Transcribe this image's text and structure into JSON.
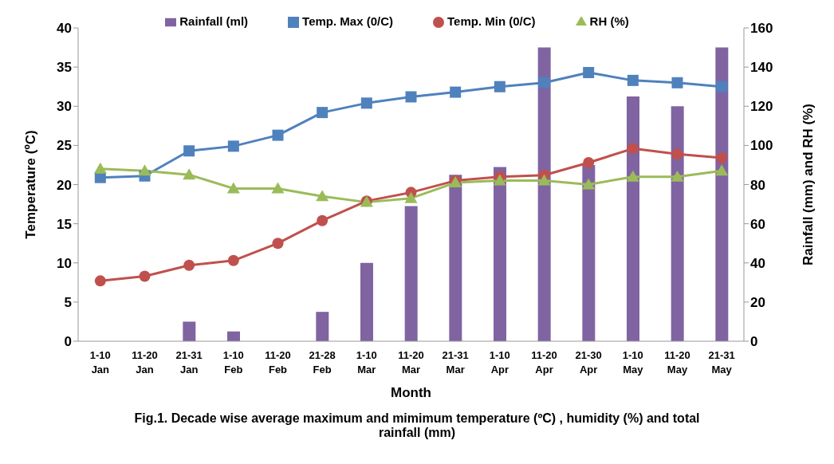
{
  "chart_data": {
    "type": "line",
    "title": "Fig.1. Decade wise average maximum and mimimum temperature (ºC) , humidity (%) and total rainfall (mm)",
    "xlabel": "Month",
    "ylabel": "Temperature (ºC)",
    "y2label": "Rainfall (mm) and RH (%)",
    "categories": [
      "1-10 Jan",
      "11-20 Jan",
      "21-31 Jan",
      "1-10 Feb",
      "11-20 Feb",
      "21-28 Feb",
      "1-10 Mar",
      "11-20 Mar",
      "21-31 Mar",
      "1-10 Apr",
      "11-20 Apr",
      "21-30 Apr",
      "1-10 May",
      "11-20 May",
      "21-31 May"
    ],
    "series": [
      {
        "name": "Rainfall (ml)",
        "type": "bar",
        "axis": "y2",
        "color": "#8064a2",
        "values": [
          0,
          0,
          10,
          5,
          0,
          15,
          40,
          69,
          85,
          89,
          150,
          90,
          125,
          120,
          150
        ]
      },
      {
        "name": "Temp. Max (0/C)",
        "marker": "square",
        "color": "#4f81bd",
        "values": [
          20.9,
          21.1,
          24.3,
          24.9,
          26.3,
          29.2,
          30.4,
          31.2,
          31.8,
          32.5,
          33.0,
          34.3,
          33.3,
          33.0,
          32.5
        ]
      },
      {
        "name": "Temp. Min (0/C)",
        "marker": "circle",
        "color": "#c0504d",
        "values": [
          7.7,
          8.3,
          9.7,
          10.3,
          12.5,
          15.4,
          17.9,
          19.0,
          20.5,
          21.0,
          21.2,
          22.8,
          24.6,
          23.9,
          23.4
        ]
      },
      {
        "name": "RH (%)",
        "marker": "triangle",
        "axis": "y2",
        "color": "#9bbb59",
        "values": [
          88,
          87,
          85,
          78,
          78,
          74,
          71,
          73,
          81,
          82,
          82,
          80,
          84,
          84,
          87
        ]
      }
    ],
    "ylim": [
      0,
      40
    ],
    "yticks": [
      0,
      5,
      10,
      15,
      20,
      25,
      30,
      35,
      40
    ],
    "y2lim": [
      0,
      160
    ],
    "y2ticks": [
      0,
      20,
      40,
      60,
      80,
      100,
      120,
      140,
      160
    ],
    "grid": false,
    "legend": "top"
  }
}
